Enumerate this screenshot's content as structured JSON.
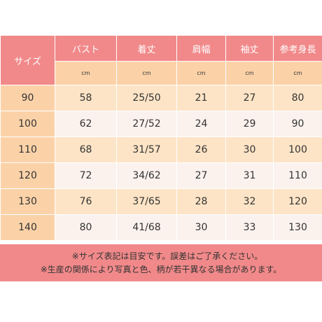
{
  "table": {
    "size_header": "サイズ",
    "columns": [
      "バスト",
      "着丈",
      "肩幅",
      "袖丈",
      "参考身長"
    ],
    "units": [
      "cm",
      "cm",
      "cm",
      "cm",
      "cm"
    ],
    "rows": [
      {
        "size": "90",
        "values": [
          "58",
          "25/50",
          "21",
          "27",
          "80"
        ]
      },
      {
        "size": "100",
        "values": [
          "62",
          "27/52",
          "24",
          "29",
          "90"
        ]
      },
      {
        "size": "110",
        "values": [
          "68",
          "31/57",
          "26",
          "30",
          "100"
        ]
      },
      {
        "size": "120",
        "values": [
          "72",
          "34/62",
          "27",
          "31",
          "110"
        ]
      },
      {
        "size": "130",
        "values": [
          "76",
          "37/65",
          "28",
          "32",
          "120"
        ]
      },
      {
        "size": "140",
        "values": [
          "80",
          "41/68",
          "30",
          "33",
          "130"
        ]
      }
    ]
  },
  "notes": {
    "line1": "※サイズ表記は目安です。誤差はご了承ください。",
    "line2": "※生産の関係により写真と色、柄が若干異なる場合があります。"
  },
  "colors": {
    "header_pink": "#f1898a",
    "unit_row": "#fbd2a8",
    "row_light_orange": "#fde4c6",
    "row_light_pink": "#fbf2ee"
  }
}
